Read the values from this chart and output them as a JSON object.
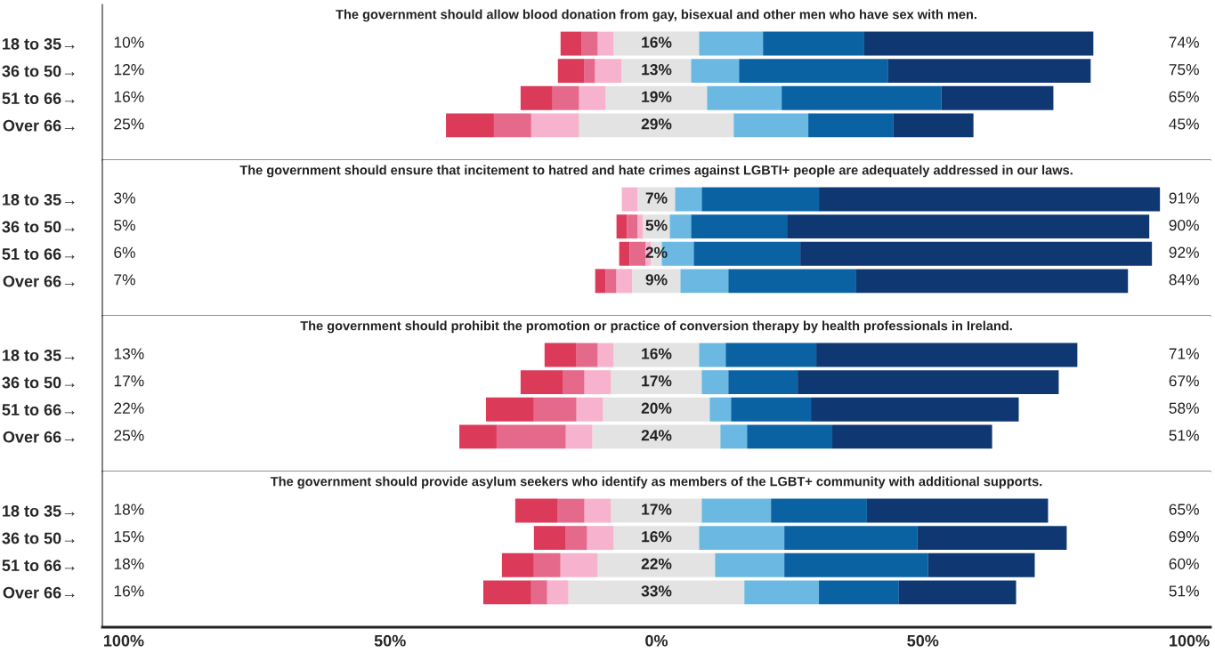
{
  "chart_data": [
    {
      "type": "bar",
      "orientation": "horizontal",
      "title": "The government should allow blood donation from gay, bisexual and other men who have sex with men.",
      "categories": [
        "18 to 35→",
        "36 to 50→",
        "51 to 66→",
        "Over 66→"
      ],
      "xlim": [
        -104,
        104
      ],
      "tick_labels": "y",
      "series": [
        {
          "color": "#dc3a59",
          "base": [
            -18,
            -18.5,
            -25.5,
            -39.5
          ],
          "values": [
            4,
            5,
            6,
            9
          ]
        },
        {
          "color": "#e4698a",
          "base": [
            -14,
            -13.5,
            -19.5,
            -30.5
          ],
          "values": [
            3,
            2,
            5,
            7
          ]
        },
        {
          "color": "#f7b3cd",
          "base": [
            -11,
            -11.5,
            -14.5,
            -23.5
          ],
          "values": [
            3,
            5,
            5,
            9
          ]
        },
        {
          "color": "#e3e3e3",
          "base": [
            -8,
            -6.5,
            -9.5,
            -14.5
          ],
          "values": [
            16,
            13,
            19,
            29
          ],
          "value_labels": [
            "16%",
            "13%",
            "19%",
            "29%"
          ]
        },
        {
          "color": "#6bb9e2",
          "base": [
            8,
            6.5,
            9.5,
            14.5
          ],
          "values": [
            12,
            9,
            14,
            14
          ]
        },
        {
          "color": "#0a62a3",
          "base": [
            20,
            15.5,
            23.5,
            28.5
          ],
          "values": [
            19,
            28,
            30,
            16
          ]
        },
        {
          "color": "#0f3872",
          "base": [
            39,
            43.5,
            53.5,
            44.5
          ],
          "values": [
            43,
            38,
            21,
            15
          ]
        }
      ],
      "annotations": [
        "10%",
        "12%",
        "16%",
        "25%",
        "74%",
        "75%",
        "65%",
        "45%"
      ]
    },
    {
      "type": "bar",
      "orientation": "horizontal",
      "title": "The government should ensure that incitement to hatred and hate crimes against LGBTI+ people are adequately addressed in our laws.",
      "categories": [
        "18 to 35→",
        "36 to 50→",
        "51 to 66→",
        "Over 66→"
      ],
      "xlim": [
        -104,
        104
      ],
      "tick_labels": "y",
      "series": [
        {
          "color": "#dc3a59",
          "base": [
            null,
            -7.5,
            -7,
            -11.5
          ],
          "values": [
            null,
            2,
            2,
            2
          ]
        },
        {
          "color": "#e4698a",
          "base": [
            null,
            -5.5,
            -5,
            -9.5
          ],
          "values": [
            null,
            2,
            3,
            2
          ]
        },
        {
          "color": "#f7b3cd",
          "base": [
            -6.5,
            -3.5,
            -2,
            -7.5
          ],
          "values": [
            3,
            1,
            1,
            3
          ]
        },
        {
          "color": "#e3e3e3",
          "base": [
            -3.5,
            -2.5,
            -1,
            -4.5
          ],
          "values": [
            7,
            5,
            2,
            9
          ],
          "value_labels": [
            "7%",
            "5%",
            "2%",
            "9%"
          ]
        },
        {
          "color": "#6bb9e2",
          "base": [
            3.5,
            2.5,
            1,
            4.5
          ],
          "values": [
            5,
            4,
            6,
            9
          ]
        },
        {
          "color": "#0a62a3",
          "base": [
            8.5,
            6.5,
            7,
            13.5
          ],
          "values": [
            22,
            18,
            20,
            24
          ]
        },
        {
          "color": "#0f3872",
          "base": [
            30.5,
            24.5,
            27,
            37.5
          ],
          "values": [
            64,
            68,
            66,
            51
          ]
        }
      ],
      "annotations": [
        "3%",
        "5%",
        "6%",
        "7%",
        "91%",
        "90%",
        "92%",
        "84%"
      ]
    },
    {
      "type": "bar",
      "orientation": "horizontal",
      "title": "The government should prohibit the promotion or practice of conversion therapy by health professionals in Ireland.",
      "categories": [
        "18 to 35→",
        "36 to 50→",
        "51 to 66→",
        "Over 66→"
      ],
      "xlim": [
        -104,
        104
      ],
      "tick_labels": "y",
      "series": [
        {
          "color": "#dc3a59",
          "base": [
            -21,
            -25.5,
            -32,
            -37
          ],
          "values": [
            6,
            8,
            9,
            7
          ]
        },
        {
          "color": "#e4698a",
          "base": [
            -15,
            -17.5,
            -23,
            -30
          ],
          "values": [
            4,
            4,
            8,
            13
          ]
        },
        {
          "color": "#f7b3cd",
          "base": [
            -11,
            -13.5,
            -15,
            -17
          ],
          "values": [
            3,
            5,
            5,
            5
          ]
        },
        {
          "color": "#e3e3e3",
          "base": [
            -8,
            -8.5,
            -10,
            -12
          ],
          "values": [
            16,
            17,
            20,
            24
          ],
          "value_labels": [
            "16%",
            "17%",
            "20%",
            "24%"
          ]
        },
        {
          "color": "#6bb9e2",
          "base": [
            8,
            8.5,
            10,
            12
          ],
          "values": [
            5,
            5,
            4,
            5
          ]
        },
        {
          "color": "#0a62a3",
          "base": [
            13,
            13.5,
            14,
            17
          ],
          "values": [
            17,
            13,
            15,
            16
          ]
        },
        {
          "color": "#0f3872",
          "base": [
            30,
            26.5,
            29,
            33
          ],
          "values": [
            49,
            49,
            39,
            30
          ]
        }
      ],
      "annotations": [
        "13%",
        "17%",
        "22%",
        "25%",
        "71%",
        "67%",
        "58%",
        "51%"
      ]
    },
    {
      "type": "bar",
      "orientation": "horizontal",
      "title": "The government should provide asylum seekers who identify as members of the LGBT+ community with additional supports.",
      "categories": [
        "18 to 35→",
        "36 to 50→",
        "51 to 66→",
        "Over 66→"
      ],
      "xlim": [
        -104,
        104
      ],
      "xticks": [
        {
          "value": -100,
          "label": "100%"
        },
        {
          "value": -50,
          "label": "50%"
        },
        {
          "value": 0,
          "label": "0%"
        },
        {
          "value": 50,
          "label": "50%"
        },
        {
          "value": 100,
          "label": "100%"
        }
      ],
      "series": [
        {
          "color": "#dc3a59",
          "base": [
            -26.5,
            -23,
            -29,
            -32.5
          ],
          "values": [
            8,
            6,
            6,
            9
          ]
        },
        {
          "color": "#e4698a",
          "base": [
            -18.5,
            -17,
            -23,
            -23.5
          ],
          "values": [
            5,
            4,
            5,
            3
          ]
        },
        {
          "color": "#f7b3cd",
          "base": [
            -13.5,
            -13,
            -18,
            -20.5
          ],
          "values": [
            5,
            5,
            7,
            4
          ]
        },
        {
          "color": "#e3e3e3",
          "base": [
            -8.5,
            -8,
            -11,
            -16.5
          ],
          "values": [
            17,
            16,
            22,
            33
          ],
          "value_labels": [
            "17%",
            "16%",
            "22%",
            "33%"
          ]
        },
        {
          "color": "#6bb9e2",
          "base": [
            8.5,
            8,
            11,
            16.5
          ],
          "values": [
            13,
            16,
            13,
            14
          ]
        },
        {
          "color": "#0a62a3",
          "base": [
            21.5,
            24,
            24,
            30.5
          ],
          "values": [
            18,
            25,
            27,
            15
          ]
        },
        {
          "color": "#0f3872",
          "base": [
            39.5,
            49,
            51,
            45.5
          ],
          "values": [
            34,
            28,
            20,
            22
          ]
        }
      ],
      "annotations": [
        "18%",
        "15%",
        "18%",
        "16%",
        "65%",
        "69%",
        "60%",
        "51%"
      ]
    }
  ]
}
